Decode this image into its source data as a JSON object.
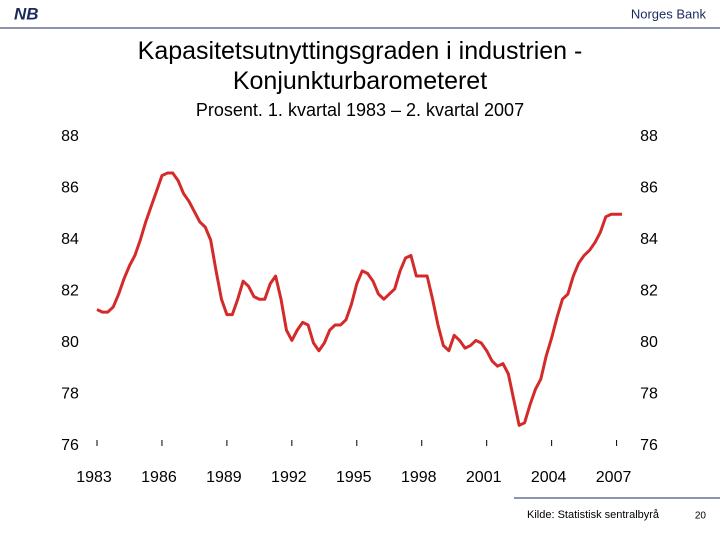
{
  "header": {
    "logo": "NB",
    "brand": "Norges Bank"
  },
  "footer": {
    "source": "Kilde: Statistisk sentralbyrå",
    "page": "20"
  },
  "chart_data": {
    "type": "line",
    "title": "Kapasitetsutnyttingsgraden i industrien - Konjunkturbarometeret",
    "subtitle": "Prosent. 1. kvartal 1983 – 2. kvartal 2007",
    "color": "#d42a2a",
    "x": [
      1983,
      1983.25,
      1983.5,
      1983.75,
      1984,
      1984.25,
      1984.5,
      1984.75,
      1985,
      1985.25,
      1985.5,
      1985.75,
      1986,
      1986.25,
      1986.5,
      1986.75,
      1987,
      1987.25,
      1987.5,
      1987.75,
      1988,
      1988.25,
      1988.5,
      1988.75,
      1989,
      1989.25,
      1989.5,
      1989.75,
      1990,
      1990.25,
      1990.5,
      1990.75,
      1991,
      1991.25,
      1991.5,
      1991.75,
      1992,
      1992.25,
      1992.5,
      1992.75,
      1993,
      1993.25,
      1993.5,
      1993.75,
      1994,
      1994.25,
      1994.5,
      1994.75,
      1995,
      1995.25,
      1995.5,
      1995.75,
      1996,
      1996.25,
      1996.5,
      1996.75,
      1997,
      1997.25,
      1997.5,
      1997.75,
      1998,
      1998.25,
      1998.5,
      1998.75,
      1999,
      1999.25,
      1999.5,
      1999.75,
      2000,
      2000.25,
      2000.5,
      2000.75,
      2001,
      2001.25,
      2001.5,
      2001.75,
      2002,
      2002.25,
      2002.5,
      2002.75,
      2003,
      2003.25,
      2003.5,
      2003.75,
      2004,
      2004.25,
      2004.5,
      2004.75,
      2005,
      2005.25,
      2005.5,
      2005.75,
      2006,
      2006.25,
      2006.5,
      2006.75,
      2007,
      2007.25
    ],
    "values": [
      81.3,
      81.2,
      81.2,
      81.4,
      81.9,
      82.5,
      83.0,
      83.4,
      84.0,
      84.7,
      85.3,
      85.9,
      86.5,
      86.6,
      86.6,
      86.3,
      85.8,
      85.5,
      85.1,
      84.7,
      84.5,
      84.0,
      82.8,
      81.7,
      81.1,
      81.1,
      81.7,
      82.4,
      82.2,
      81.8,
      81.7,
      81.7,
      82.3,
      82.6,
      81.7,
      80.5,
      80.1,
      80.5,
      80.8,
      80.7,
      80.0,
      79.7,
      80.0,
      80.5,
      80.7,
      80.7,
      80.9,
      81.5,
      82.3,
      82.8,
      82.7,
      82.4,
      81.9,
      81.7,
      81.9,
      82.1,
      82.8,
      83.3,
      83.4,
      82.6,
      82.6,
      82.6,
      81.7,
      80.7,
      79.9,
      79.7,
      80.3,
      80.1,
      79.8,
      79.9,
      80.1,
      80.0,
      79.7,
      79.3,
      79.1,
      79.2,
      78.8,
      77.8,
      76.8,
      76.9,
      77.6,
      78.2,
      78.6,
      79.5,
      80.2,
      81.0,
      81.7,
      81.9,
      82.6,
      83.1,
      83.4,
      83.6,
      83.9,
      84.3,
      84.9,
      85.0,
      85.0,
      85.0
    ],
    "xlim": [
      1983,
      2007.25
    ],
    "xticks": [
      1983,
      1986,
      1989,
      1992,
      1995,
      1998,
      2001,
      2004,
      2007
    ],
    "ylim": [
      76,
      88
    ],
    "yticks": [
      76,
      78,
      80,
      82,
      84,
      86,
      88
    ],
    "y2lim": [
      76,
      88
    ],
    "y2ticks": [
      76,
      78,
      80,
      82,
      84,
      86,
      88
    ],
    "grid": false
  }
}
